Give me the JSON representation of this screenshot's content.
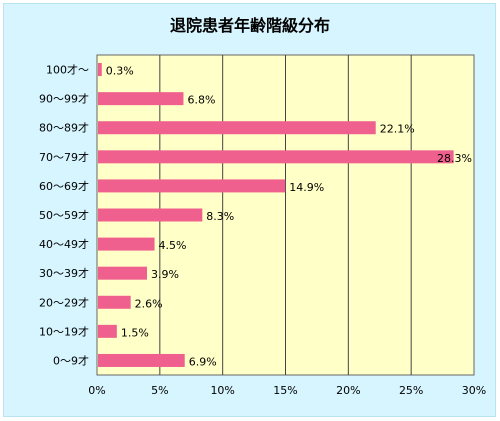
{
  "chart_data": {
    "type": "bar",
    "orientation": "horizontal",
    "title": "退院患者年齢階級分布",
    "categories": [
      "100才～",
      "90～99才",
      "80～89才",
      "70～79才",
      "60～69才",
      "50～59才",
      "40～49才",
      "30～39才",
      "20～29才",
      "10～19才",
      "0～9才"
    ],
    "values": [
      0.3,
      6.8,
      22.1,
      28.3,
      14.9,
      8.3,
      4.5,
      3.9,
      2.6,
      1.5,
      6.9
    ],
    "value_labels": [
      "0.3%",
      "6.8%",
      "22.1%",
      "28.3%",
      "14.9%",
      "8.3%",
      "4.5%",
      "3.9%",
      "2.6%",
      "1.5%",
      "6.9%"
    ],
    "xticks": [
      "0%",
      "5%",
      "10%",
      "15%",
      "20%",
      "25%",
      "30%"
    ],
    "xlim": [
      0,
      30
    ],
    "xlabel": "",
    "ylabel": "",
    "grid": true,
    "colors": {
      "bar": "#f0608f",
      "plot_bg": "#ffffc8",
      "frame_bg": "#d6f5ff",
      "grid": "#444444"
    }
  }
}
